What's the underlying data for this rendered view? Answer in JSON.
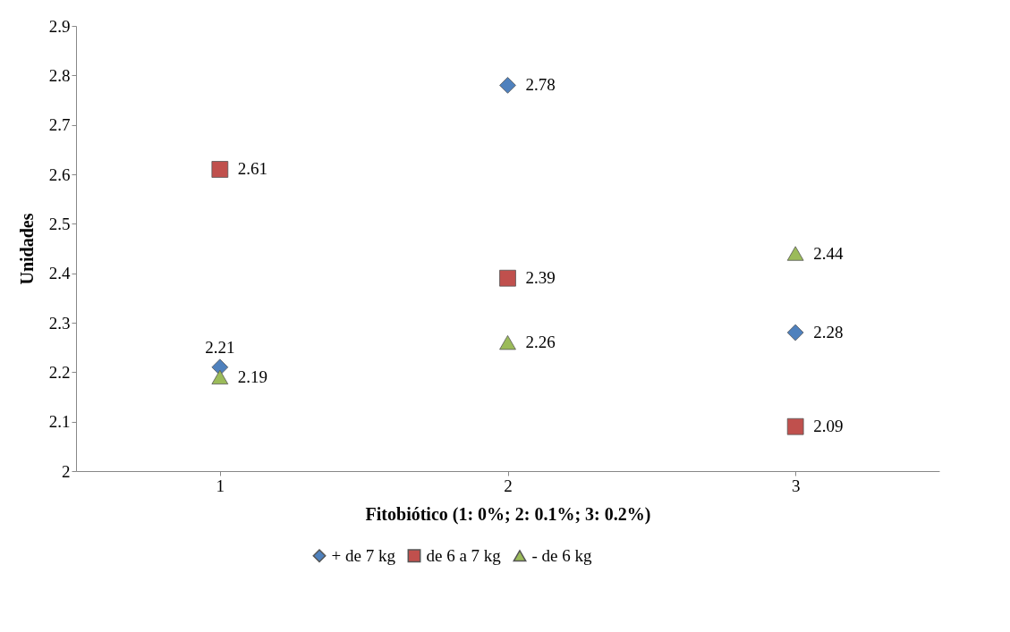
{
  "chart_data": {
    "type": "scatter",
    "xlabel": "Fitobiótico (1: 0%; 2: 0.1%; 3: 0.2%)",
    "ylabel": "Unidades",
    "categories": [
      "1",
      "2",
      "3"
    ],
    "series": [
      {
        "name": "+ de 7 kg",
        "color": "#4f81bd",
        "marker": "diamond",
        "values": [
          2.21,
          2.78,
          2.28
        ]
      },
      {
        "name": "de 6 a 7 kg",
        "color": "#c0504d",
        "marker": "square",
        "values": [
          2.61,
          2.39,
          2.09
        ]
      },
      {
        "name": "- de 6 kg",
        "color": "#9bbb59",
        "marker": "triangle",
        "values": [
          2.19,
          2.26,
          2.44
        ]
      }
    ],
    "ylim": [
      2,
      2.9
    ],
    "yticks": [
      2,
      2.1,
      2.2,
      2.3,
      2.4,
      2.5,
      2.6,
      2.7,
      2.8,
      2.9
    ],
    "grid": false,
    "legend": "bottom",
    "data_labels": true
  }
}
